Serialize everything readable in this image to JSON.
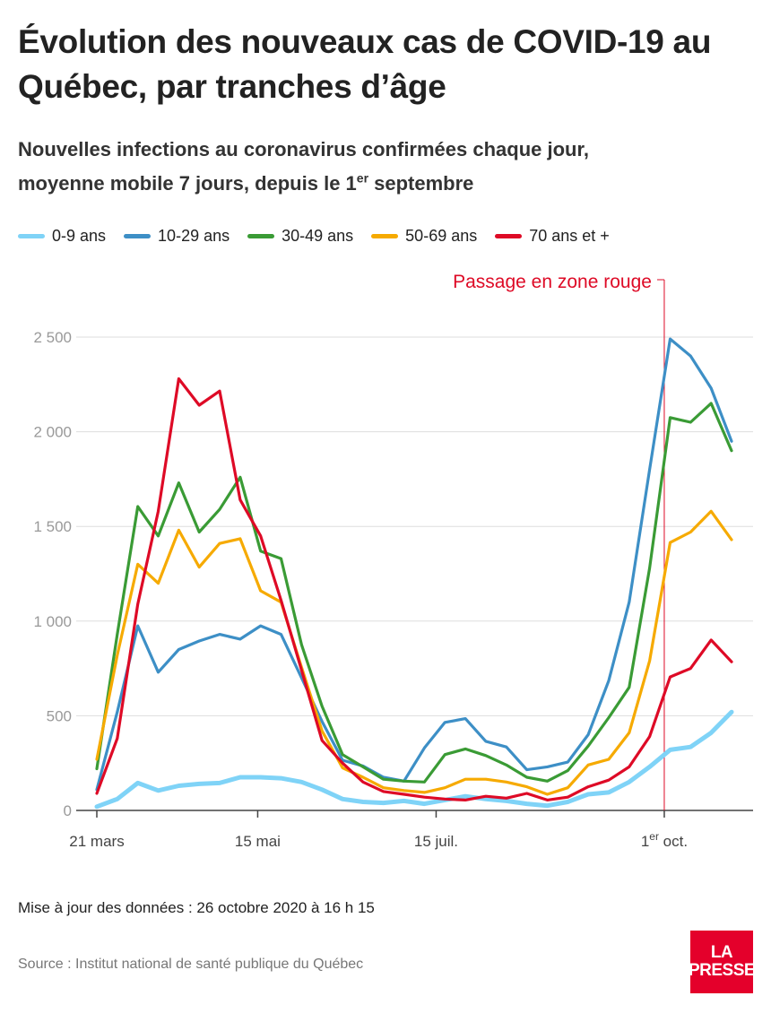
{
  "title": "Évolution des nouveaux cas de COVID-19 au Québec, par tranches d’âge",
  "subtitle_line1": "Nouvelles infections au coronavirus confirmées chaque jour,",
  "subtitle_line2_pre": "moyenne mobile 7 jours, depuis le 1",
  "subtitle_line2_sup": "er",
  "subtitle_line2_post": " septembre",
  "footnote": "Mise à jour des données : 26 octobre 2020 à 16 h 15",
  "source": "Source : Institut national de santé publique du Québec",
  "logo": {
    "line1": "LA",
    "line2": "PRESSE"
  },
  "chart_data": {
    "type": "line",
    "x": [
      "2020-03-21",
      "2020-03-28",
      "2020-04-04",
      "2020-04-11",
      "2020-04-18",
      "2020-04-25",
      "2020-05-02",
      "2020-05-09",
      "2020-05-16",
      "2020-05-23",
      "2020-05-30",
      "2020-06-06",
      "2020-06-13",
      "2020-06-20",
      "2020-06-27",
      "2020-07-04",
      "2020-07-11",
      "2020-07-18",
      "2020-07-25",
      "2020-08-01",
      "2020-08-08",
      "2020-08-15",
      "2020-08-22",
      "2020-08-29",
      "2020-09-05",
      "2020-09-12",
      "2020-09-19",
      "2020-09-26",
      "2020-10-03",
      "2020-10-10",
      "2020-10-17",
      "2020-10-24"
    ],
    "series": [
      {
        "name": "0-9 ans",
        "color": "#7fd3f7",
        "values": [
          20,
          60,
          145,
          105,
          130,
          140,
          145,
          175,
          175,
          170,
          150,
          110,
          60,
          45,
          40,
          50,
          35,
          55,
          75,
          60,
          50,
          35,
          25,
          45,
          85,
          95,
          150,
          230,
          320,
          335,
          410,
          520
        ]
      },
      {
        "name": "10-29 ans",
        "color": "#3d8fc6",
        "values": [
          110,
          520,
          975,
          730,
          850,
          895,
          930,
          905,
          975,
          930,
          700,
          470,
          265,
          235,
          175,
          155,
          330,
          465,
          485,
          365,
          335,
          215,
          230,
          255,
          400,
          685,
          1100,
          1800,
          2490,
          2400,
          2230,
          1950
        ]
      },
      {
        "name": "30-49 ans",
        "color": "#3a9b35",
        "values": [
          220,
          930,
          1605,
          1450,
          1730,
          1470,
          1590,
          1760,
          1370,
          1330,
          875,
          550,
          295,
          230,
          165,
          155,
          150,
          295,
          325,
          290,
          240,
          175,
          155,
          210,
          340,
          490,
          650,
          1280,
          2075,
          2050,
          2150,
          1900
        ]
      },
      {
        "name": "50-69 ans",
        "color": "#f6aa00",
        "values": [
          270,
          820,
          1300,
          1200,
          1480,
          1285,
          1410,
          1435,
          1160,
          1100,
          755,
          420,
          225,
          175,
          120,
          105,
          95,
          120,
          165,
          165,
          150,
          125,
          85,
          120,
          240,
          270,
          410,
          790,
          1415,
          1470,
          1580,
          1430
        ]
      },
      {
        "name": "70 ans et +",
        "color": "#de0a26",
        "values": [
          90,
          380,
          1090,
          1580,
          2280,
          2140,
          2215,
          1640,
          1450,
          1110,
          740,
          370,
          250,
          150,
          100,
          85,
          70,
          60,
          55,
          75,
          65,
          90,
          55,
          70,
          125,
          160,
          230,
          390,
          705,
          750,
          900,
          785
        ]
      }
    ],
    "x_ticks": [
      {
        "date": "2020-03-21",
        "label": "21 mars",
        "sup": "",
        "suffix": ""
      },
      {
        "date": "2020-05-15",
        "label": "15 mai",
        "sup": "",
        "suffix": ""
      },
      {
        "date": "2020-07-15",
        "label": "15 juil.",
        "sup": "",
        "suffix": ""
      },
      {
        "date": "2020-10-01",
        "label": "1",
        "sup": "er",
        "suffix": " oct."
      }
    ],
    "y_ticks": [
      0,
      500,
      1000,
      1500,
      2000,
      2500
    ],
    "y_tick_labels": [
      "0",
      "500",
      "1 000",
      "1 500",
      "2 000",
      "2 500"
    ],
    "ylim": [
      0,
      2500
    ],
    "annotation": {
      "date": "2020-10-01",
      "label": "Passage en zone rouge"
    },
    "grid": true,
    "legend_position": "top"
  }
}
